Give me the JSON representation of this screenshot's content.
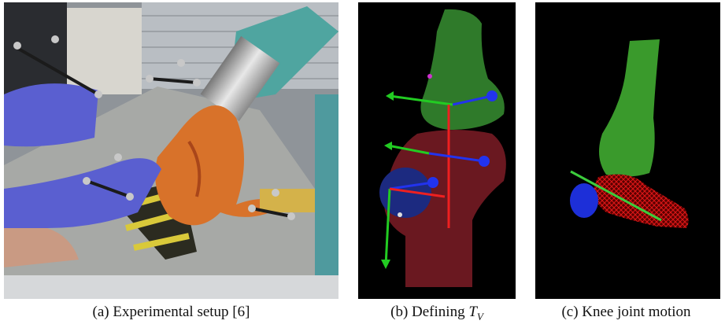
{
  "figure": {
    "caption_a": "(a) Experimental setup [6]",
    "caption_b": {
      "text": "(b) Defining",
      "symbol": "T",
      "subscript": "V"
    },
    "caption_c": "(c) Knee joint motion"
  }
}
